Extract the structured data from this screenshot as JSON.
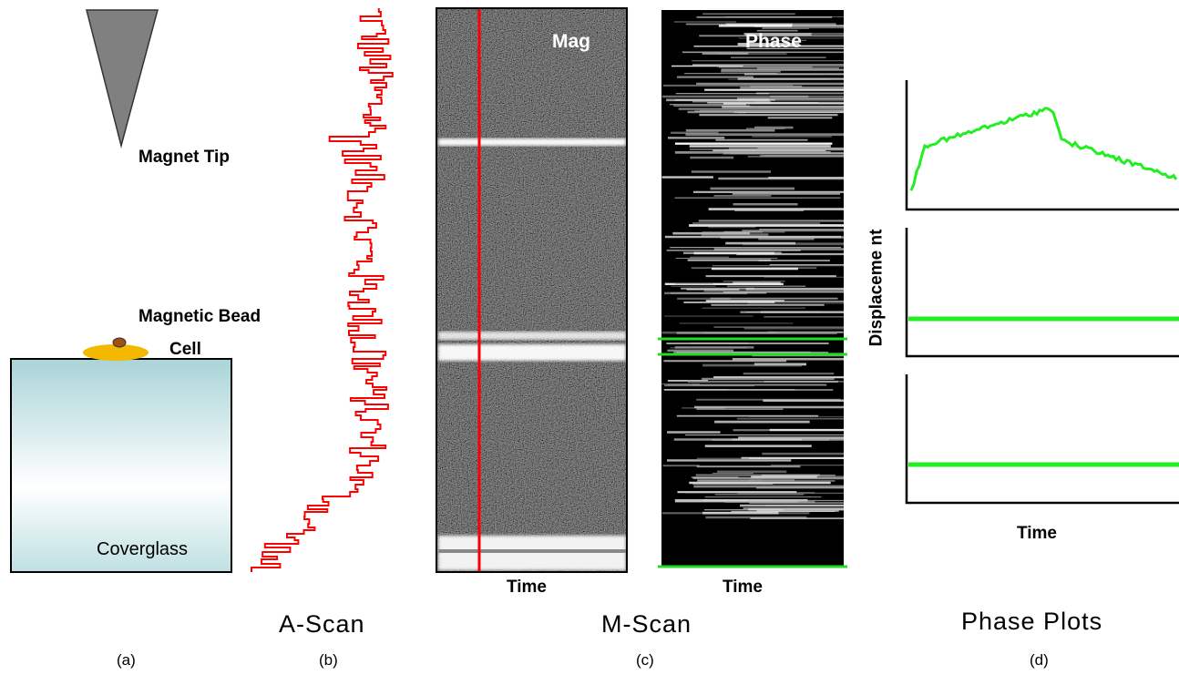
{
  "panel_a": {
    "magnet_tip_label": "Magnet Tip",
    "bead_label": "Magnetic Bead",
    "cell_label": "Cell",
    "coverglass_label": "Coverglass",
    "caption": "(a)"
  },
  "panel_b": {
    "title": "A-Scan",
    "caption": "(b)"
  },
  "panel_c": {
    "title": "M-Scan",
    "mag_label": "Mag",
    "phase_label": "Phase",
    "time_label_mag": "Time",
    "time_label_phase": "Time",
    "caption": "(c)"
  },
  "panel_d": {
    "title": "Phase Plots",
    "ylabel": "Displaceme nt",
    "xlabel": "Time",
    "caption": "(d)"
  },
  "colors": {
    "ascan": "#ff0000",
    "mline": "#ff0000",
    "phase_lines": "#22dd22",
    "plot_line": "#22ee22",
    "tip": "#808080",
    "cell": "#f5b800",
    "bead": "#a05010",
    "glass_top": "#a9d4d8",
    "glass_bottom": "#ffffff"
  }
}
